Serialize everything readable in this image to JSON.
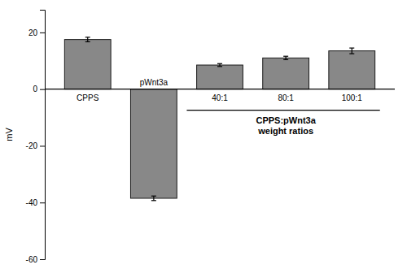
{
  "chart_data": {
    "type": "bar",
    "categories": [
      "CPPS",
      "pWnt3a",
      "40:1",
      "80:1",
      "100:1"
    ],
    "values": [
      17.5,
      -38.5,
      8.5,
      11.0,
      13.5
    ],
    "errors": [
      0.8,
      0.8,
      0.5,
      0.6,
      1.0
    ],
    "color": "#888888",
    "ylabel": "mV",
    "annotation": "CPPS:pWnt3a\nweight ratios",
    "ylim": [
      -60,
      28
    ],
    "yticks": [
      -60,
      -40,
      -20,
      0,
      20
    ]
  }
}
